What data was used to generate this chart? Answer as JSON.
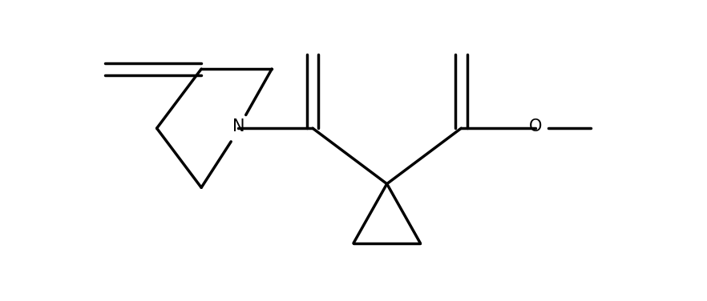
{
  "background_color": "#ffffff",
  "line_color": "#000000",
  "line_width": 2.5,
  "fig_width": 8.82,
  "fig_height": 3.76,
  "dpi": 100
}
